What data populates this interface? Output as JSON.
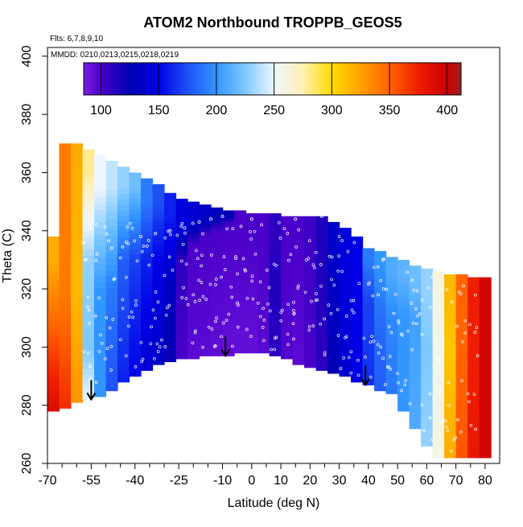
{
  "chart_data": {
    "type": "heatmap",
    "title": "ATOM2 Northbound TROPPB_GEOS5",
    "subtitle": "Flts: 6,7,8,9,10",
    "annotation": "MMDD: 0210,0213,0215,0218,0219",
    "xlabel": "Latitude (deg N)",
    "ylabel": "Theta (C)",
    "xlim": [
      -70,
      85
    ],
    "ylim": [
      260,
      403
    ],
    "x_ticks": [
      -70,
      -55,
      -40,
      -25,
      -10,
      0,
      10,
      20,
      30,
      40,
      50,
      60,
      70,
      80
    ],
    "x_minor_ticks": [
      -65,
      -60,
      -50,
      -45,
      -35,
      -30,
      -20,
      -15,
      -5,
      5,
      15,
      25,
      35,
      45,
      55,
      65,
      75
    ],
    "y_ticks": [
      260,
      280,
      300,
      320,
      340,
      360,
      380,
      400
    ],
    "colorbar": {
      "min": 85,
      "max": 412,
      "ticks": [
        100,
        150,
        200,
        250,
        300,
        350,
        400
      ],
      "stops": [
        {
          "v": 85,
          "c": "#7a1ee6"
        },
        {
          "v": 100,
          "c": "#4a00c8"
        },
        {
          "v": 125,
          "c": "#0000b4"
        },
        {
          "v": 150,
          "c": "#0000e6"
        },
        {
          "v": 175,
          "c": "#1e50f5"
        },
        {
          "v": 200,
          "c": "#3296ff"
        },
        {
          "v": 225,
          "c": "#7dc8ff"
        },
        {
          "v": 250,
          "c": "#eef6ff"
        },
        {
          "v": 275,
          "c": "#fff0b4"
        },
        {
          "v": 300,
          "c": "#ffdc00"
        },
        {
          "v": 325,
          "c": "#ffa000"
        },
        {
          "v": 350,
          "c": "#ff6400"
        },
        {
          "v": 375,
          "c": "#f01e00"
        },
        {
          "v": 400,
          "c": "#c80000"
        },
        {
          "v": 412,
          "c": "#a02020"
        }
      ]
    },
    "columns": [
      {
        "lat": -68,
        "bottom": 278,
        "top": 338,
        "bands": [
          {
            "y": 278,
            "v": 390
          },
          {
            "y": 300,
            "v": 360
          },
          {
            "y": 330,
            "v": 320
          }
        ]
      },
      {
        "lat": -64,
        "bottom": 279,
        "top": 370,
        "bands": [
          {
            "y": 279,
            "v": 370
          },
          {
            "y": 320,
            "v": 340
          },
          {
            "y": 365,
            "v": 340
          }
        ]
      },
      {
        "lat": -60,
        "bottom": 281,
        "top": 370,
        "bands": [
          {
            "y": 281,
            "v": 330
          },
          {
            "y": 320,
            "v": 315
          },
          {
            "y": 365,
            "v": 320
          }
        ]
      },
      {
        "lat": -56,
        "bottom": 282,
        "top": 368,
        "bands": [
          {
            "y": 282,
            "v": 250
          },
          {
            "y": 300,
            "v": 225
          },
          {
            "y": 330,
            "v": 230
          },
          {
            "y": 360,
            "v": 280
          }
        ]
      },
      {
        "lat": -52,
        "bottom": 283,
        "top": 366,
        "bands": [
          {
            "y": 283,
            "v": 200
          },
          {
            "y": 320,
            "v": 200
          },
          {
            "y": 355,
            "v": 250
          }
        ]
      },
      {
        "lat": -48,
        "bottom": 285,
        "top": 364,
        "bands": [
          {
            "y": 285,
            "v": 175
          },
          {
            "y": 320,
            "v": 190
          },
          {
            "y": 355,
            "v": 240
          }
        ]
      },
      {
        "lat": -44,
        "bottom": 288,
        "top": 362,
        "bands": [
          {
            "y": 288,
            "v": 160
          },
          {
            "y": 330,
            "v": 180
          },
          {
            "y": 355,
            "v": 230
          }
        ]
      },
      {
        "lat": -40,
        "bottom": 290,
        "top": 360,
        "bands": [
          {
            "y": 290,
            "v": 150
          },
          {
            "y": 330,
            "v": 170
          },
          {
            "y": 355,
            "v": 220
          }
        ]
      },
      {
        "lat": -36,
        "bottom": 292,
        "top": 358,
        "bands": [
          {
            "y": 292,
            "v": 140
          },
          {
            "y": 330,
            "v": 160
          },
          {
            "y": 350,
            "v": 190
          }
        ]
      },
      {
        "lat": -32,
        "bottom": 294,
        "top": 356,
        "bands": [
          {
            "y": 294,
            "v": 135
          },
          {
            "y": 330,
            "v": 150
          },
          {
            "y": 350,
            "v": 175
          }
        ]
      },
      {
        "lat": -28,
        "bottom": 295,
        "top": 353,
        "bands": [
          {
            "y": 295,
            "v": 120
          },
          {
            "y": 325,
            "v": 135
          },
          {
            "y": 345,
            "v": 160
          }
        ]
      },
      {
        "lat": -24,
        "bottom": 296,
        "top": 351,
        "bands": [
          {
            "y": 296,
            "v": 100
          },
          {
            "y": 330,
            "v": 110
          },
          {
            "y": 342,
            "v": 145
          }
        ]
      },
      {
        "lat": -20,
        "bottom": 296,
        "top": 350,
        "bands": [
          {
            "y": 296,
            "v": 95
          },
          {
            "y": 335,
            "v": 100
          },
          {
            "y": 343,
            "v": 140
          }
        ]
      },
      {
        "lat": -16,
        "bottom": 297,
        "top": 349,
        "bands": [
          {
            "y": 297,
            "v": 95
          },
          {
            "y": 338,
            "v": 100
          },
          {
            "y": 344,
            "v": 135
          }
        ]
      },
      {
        "lat": -12,
        "bottom": 297,
        "top": 348,
        "bands": [
          {
            "y": 297,
            "v": 93
          },
          {
            "y": 340,
            "v": 100
          },
          {
            "y": 345,
            "v": 130
          }
        ]
      },
      {
        "lat": -8,
        "bottom": 297,
        "top": 347,
        "bands": [
          {
            "y": 297,
            "v": 92
          },
          {
            "y": 342,
            "v": 100
          },
          {
            "y": 345,
            "v": 125
          }
        ]
      },
      {
        "lat": -4,
        "bottom": 298,
        "top": 347,
        "bands": [
          {
            "y": 298,
            "v": 92
          },
          {
            "y": 343,
            "v": 100
          }
        ]
      },
      {
        "lat": 0,
        "bottom": 298,
        "top": 346,
        "bands": [
          {
            "y": 298,
            "v": 92
          },
          {
            "y": 343,
            "v": 100
          }
        ]
      },
      {
        "lat": 4,
        "bottom": 298,
        "top": 346,
        "bands": [
          {
            "y": 298,
            "v": 95
          },
          {
            "y": 335,
            "v": 100
          }
        ]
      },
      {
        "lat": 8,
        "bottom": 297,
        "top": 346,
        "bands": [
          {
            "y": 297,
            "v": 110
          },
          {
            "y": 320,
            "v": 115
          },
          {
            "y": 340,
            "v": 110
          }
        ]
      },
      {
        "lat": 12,
        "bottom": 296,
        "top": 345,
        "bands": [
          {
            "y": 296,
            "v": 98
          },
          {
            "y": 340,
            "v": 100
          }
        ]
      },
      {
        "lat": 16,
        "bottom": 294,
        "top": 345,
        "bands": [
          {
            "y": 294,
            "v": 95
          },
          {
            "y": 340,
            "v": 100
          }
        ]
      },
      {
        "lat": 20,
        "bottom": 293,
        "top": 345,
        "bands": [
          {
            "y": 293,
            "v": 100
          },
          {
            "y": 340,
            "v": 105
          }
        ]
      },
      {
        "lat": 24,
        "bottom": 292,
        "top": 345,
        "bands": [
          {
            "y": 292,
            "v": 110
          },
          {
            "y": 330,
            "v": 115
          }
        ]
      },
      {
        "lat": 28,
        "bottom": 291,
        "top": 343,
        "bands": [
          {
            "y": 291,
            "v": 125
          },
          {
            "y": 330,
            "v": 135
          }
        ]
      },
      {
        "lat": 32,
        "bottom": 290,
        "top": 341,
        "bands": [
          {
            "y": 290,
            "v": 140
          },
          {
            "y": 330,
            "v": 145
          }
        ]
      },
      {
        "lat": 36,
        "bottom": 288,
        "top": 338,
        "bands": [
          {
            "y": 288,
            "v": 150
          },
          {
            "y": 320,
            "v": 150
          }
        ]
      },
      {
        "lat": 40,
        "bottom": 287,
        "top": 334,
        "bands": [
          {
            "y": 287,
            "v": 165
          },
          {
            "y": 315,
            "v": 170
          },
          {
            "y": 330,
            "v": 190
          }
        ]
      },
      {
        "lat": 44,
        "bottom": 285,
        "top": 333,
        "bands": [
          {
            "y": 285,
            "v": 180
          },
          {
            "y": 310,
            "v": 185
          },
          {
            "y": 328,
            "v": 200
          }
        ]
      },
      {
        "lat": 48,
        "bottom": 284,
        "top": 331,
        "bands": [
          {
            "y": 284,
            "v": 190
          },
          {
            "y": 310,
            "v": 195
          },
          {
            "y": 325,
            "v": 210
          }
        ]
      },
      {
        "lat": 52,
        "bottom": 278,
        "top": 330,
        "bands": [
          {
            "y": 278,
            "v": 200
          },
          {
            "y": 310,
            "v": 200
          },
          {
            "y": 325,
            "v": 215
          }
        ]
      },
      {
        "lat": 56,
        "bottom": 272,
        "top": 328,
        "bands": [
          {
            "y": 272,
            "v": 210
          },
          {
            "y": 310,
            "v": 205
          },
          {
            "y": 322,
            "v": 220
          }
        ]
      },
      {
        "lat": 60,
        "bottom": 266,
        "top": 327,
        "bands": [
          {
            "y": 266,
            "v": 230
          },
          {
            "y": 300,
            "v": 225
          },
          {
            "y": 320,
            "v": 230
          }
        ]
      },
      {
        "lat": 64,
        "bottom": 262,
        "top": 326,
        "bands": [
          {
            "y": 262,
            "v": 260
          },
          {
            "y": 300,
            "v": 255
          },
          {
            "y": 320,
            "v": 260
          }
        ]
      },
      {
        "lat": 68,
        "bottom": 262,
        "top": 325,
        "bands": [
          {
            "y": 262,
            "v": 320
          },
          {
            "y": 300,
            "v": 310
          },
          {
            "y": 320,
            "v": 315
          }
        ]
      },
      {
        "lat": 72,
        "bottom": 262,
        "top": 325,
        "bands": [
          {
            "y": 262,
            "v": 355
          },
          {
            "y": 300,
            "v": 350
          },
          {
            "y": 320,
            "v": 350
          }
        ]
      },
      {
        "lat": 76,
        "bottom": 262,
        "top": 324,
        "bands": [
          {
            "y": 262,
            "v": 380
          },
          {
            "y": 300,
            "v": 375
          }
        ]
      },
      {
        "lat": 80,
        "bottom": 262,
        "top": 324,
        "bands": [
          {
            "y": 262,
            "v": 395
          },
          {
            "y": 300,
            "v": 395
          }
        ]
      }
    ],
    "tropopause_arrows": [
      {
        "lat": -55,
        "theta": 282
      },
      {
        "lat": -9,
        "theta": 297
      },
      {
        "lat": 39,
        "theta": 287
      }
    ],
    "observation_path_samples": [
      {
        "lat": -57,
        "theta": 330
      },
      {
        "lat": -53,
        "theta": 332
      },
      {
        "lat": -48,
        "theta": 334
      },
      {
        "lat": -43,
        "theta": 336
      },
      {
        "lat": -38,
        "theta": 338
      },
      {
        "lat": -33,
        "theta": 339
      },
      {
        "lat": -28,
        "theta": 340
      },
      {
        "lat": -23,
        "theta": 341
      },
      {
        "lat": -18,
        "theta": 343
      },
      {
        "lat": -14,
        "theta": 344
      },
      {
        "lat": -10,
        "theta": 345
      },
      {
        "lat": 0,
        "theta": 344
      },
      {
        "lat": 15,
        "theta": 344
      },
      {
        "lat": 24,
        "theta": 345
      },
      {
        "lat": 35,
        "theta": 339
      },
      {
        "lat": 45,
        "theta": 330
      },
      {
        "lat": 55,
        "theta": 323
      }
    ]
  }
}
